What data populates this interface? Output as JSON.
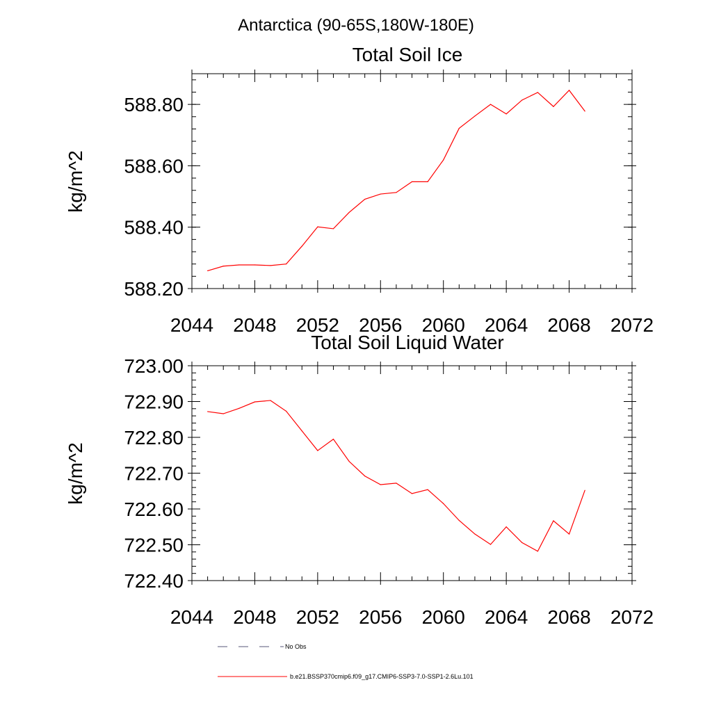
{
  "figure_title": "Antarctica (90-65S,180W-180E)",
  "colors": {
    "series": "#ff0000",
    "obs": "#555577",
    "axis": "#000000"
  },
  "legend": {
    "position": "bottom",
    "items": [
      {
        "label": "No Obs",
        "style": "dashed",
        "color": "#555577"
      },
      {
        "label": "b.e21.BSSP370cmip6.f09_g17.CMIP6-SSP3-7.0-SSP1-2.6Lu.101",
        "style": "solid",
        "color": "#ff0000"
      }
    ]
  },
  "chart_data": [
    {
      "type": "line",
      "title": "Total Soil Ice",
      "xlabel": "",
      "ylabel": "kg/m^2",
      "xlim": [
        2044,
        2072
      ],
      "ylim": [
        588.2,
        588.9
      ],
      "xticks": [
        2044,
        2048,
        2052,
        2056,
        2060,
        2064,
        2068,
        2072
      ],
      "xtick_labels": [
        "2044",
        "2048",
        "2052",
        "2056",
        "2060",
        "2064",
        "2068",
        "2072"
      ],
      "yticks": [
        588.2,
        588.4,
        588.6,
        588.8
      ],
      "ytick_labels": [
        "588.20",
        "588.40",
        "588.60",
        "588.80"
      ],
      "grid": false,
      "series": [
        {
          "name": "b.e21.BSSP370cmip6.f09_g17.CMIP6-SSP3-7.0-SSP1-2.6Lu.101",
          "color": "#ff0000",
          "x": [
            2045,
            2046,
            2047,
            2048,
            2049,
            2050,
            2051,
            2052,
            2053,
            2054,
            2055,
            2056,
            2057,
            2058,
            2059,
            2060,
            2061,
            2062,
            2063,
            2064,
            2065,
            2066,
            2067,
            2068,
            2069
          ],
          "values": [
            588.258,
            588.273,
            588.277,
            588.277,
            588.275,
            588.28,
            588.338,
            588.401,
            588.395,
            588.448,
            588.491,
            588.508,
            588.513,
            588.548,
            588.548,
            588.619,
            588.722,
            588.762,
            588.8,
            588.769,
            588.814,
            588.839,
            588.793,
            588.846,
            588.778
          ]
        }
      ]
    },
    {
      "type": "line",
      "title": "Total Soil Liquid Water",
      "xlabel": "",
      "ylabel": "kg/m^2",
      "xlim": [
        2044,
        2072
      ],
      "ylim": [
        722.4,
        723.0
      ],
      "xticks": [
        2044,
        2048,
        2052,
        2056,
        2060,
        2064,
        2068,
        2072
      ],
      "xtick_labels": [
        "2044",
        "2048",
        "2052",
        "2056",
        "2060",
        "2064",
        "2068",
        "2072"
      ],
      "yticks": [
        722.4,
        722.5,
        722.6,
        722.7,
        722.8,
        722.9,
        723.0
      ],
      "ytick_labels": [
        "722.40",
        "722.50",
        "722.60",
        "722.70",
        "722.80",
        "722.90",
        "723.00"
      ],
      "grid": false,
      "series": [
        {
          "name": "b.e21.BSSP370cmip6.f09_g17.CMIP6-SSP3-7.0-SSP1-2.6Lu.101",
          "color": "#ff0000",
          "x": [
            2045,
            2046,
            2047,
            2048,
            2049,
            2050,
            2051,
            2052,
            2053,
            2054,
            2055,
            2056,
            2057,
            2058,
            2059,
            2060,
            2061,
            2062,
            2063,
            2064,
            2065,
            2066,
            2067,
            2068,
            2069
          ],
          "values": [
            722.872,
            722.866,
            722.881,
            722.899,
            722.903,
            722.873,
            722.818,
            722.763,
            722.795,
            722.733,
            722.692,
            722.668,
            722.672,
            722.643,
            722.654,
            722.615,
            722.568,
            722.53,
            722.501,
            722.55,
            722.506,
            722.482,
            722.567,
            722.53,
            722.652
          ]
        }
      ]
    }
  ]
}
